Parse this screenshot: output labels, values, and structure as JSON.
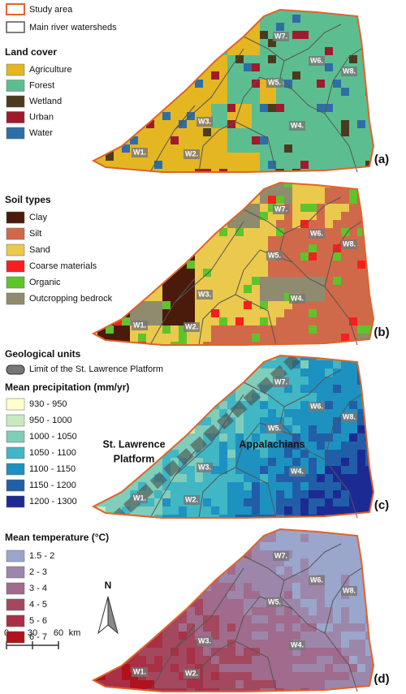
{
  "legend_common": {
    "study_area": "Study area",
    "watersheds": "Main river watersheds"
  },
  "watershed_labels": [
    "W1.",
    "W2.",
    "W3.",
    "W4.",
    "W5.",
    "W6.",
    "W7.",
    "W8."
  ],
  "geology": {
    "title": "Geological units",
    "limit": "Limit of the St. Lawrence Platform",
    "platform": [
      "St. Lawrence",
      "Platform"
    ],
    "appalachians": "Appalachians"
  },
  "panels": [
    {
      "label": "(a)",
      "legend_title": "Land cover",
      "classes": [
        {
          "name": "Agriculture",
          "color": "#e3b622"
        },
        {
          "name": "Forest",
          "color": "#5cbe90"
        },
        {
          "name": "Wetland",
          "color": "#4b3b1e"
        },
        {
          "name": "Urban",
          "color": "#a11a2c"
        },
        {
          "name": "Water",
          "color": "#2e6ea6"
        }
      ]
    },
    {
      "label": "(b)",
      "legend_title": "Soil types",
      "classes": [
        {
          "name": "Clay",
          "color": "#4a1a0a"
        },
        {
          "name": "Silt",
          "color": "#d0694a"
        },
        {
          "name": "Sand",
          "color": "#ebc94c"
        },
        {
          "name": "Coarse materials",
          "color": "#fa1e1e"
        },
        {
          "name": "Organic",
          "color": "#5ec42b"
        },
        {
          "name": "Outcropping bedrock",
          "color": "#8e8b6e"
        }
      ]
    },
    {
      "label": "(c)",
      "legend_title": "Mean precipitation (mm/yr)",
      "classes": [
        {
          "name": "930 - 950",
          "color": "#ffffcc"
        },
        {
          "name": "950 - 1000",
          "color": "#c7e9c0"
        },
        {
          "name": "1000 - 1050",
          "color": "#7fcdbb"
        },
        {
          "name": "1050 - 1100",
          "color": "#41b6c4"
        },
        {
          "name": "1100 - 1150",
          "color": "#1d91c0"
        },
        {
          "name": "1150 - 1200",
          "color": "#225ea8"
        },
        {
          "name": "1200 - 1300",
          "color": "#1c2b94"
        }
      ]
    },
    {
      "label": "(d)",
      "legend_title": "Mean temperature (°C)",
      "classes": [
        {
          "name": "1.5 - 2",
          "color": "#9ba6cc"
        },
        {
          "name": "2 - 3",
          "color": "#9c87ab"
        },
        {
          "name": "3 - 4",
          "color": "#a06b8c"
        },
        {
          "name": "4 - 5",
          "color": "#a3485e"
        },
        {
          "name": "5 - 6",
          "color": "#a93046"
        },
        {
          "name": "6 - 7",
          "color": "#b0121e"
        }
      ]
    }
  ],
  "north": "N",
  "scale": {
    "ticks": [
      "0",
      "30",
      "60"
    ],
    "unit": "km"
  }
}
